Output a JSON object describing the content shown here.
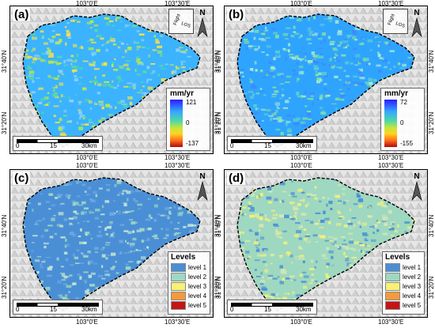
{
  "coords": {
    "lon1": "103°0'E",
    "lon2": "103°30'E",
    "lat1": "31°40'N",
    "lat2": "31°20'N"
  },
  "north_label": "N",
  "scale": {
    "t0": "0",
    "t1": "15",
    "t2": "30km"
  },
  "los_labels": {
    "flight": "Flight",
    "los": "LOS"
  },
  "panels": {
    "a": {
      "label": "(a)",
      "unit": "mm/yr",
      "max": "121",
      "mid": "0",
      "min": "-137"
    },
    "b": {
      "label": "(b)",
      "unit": "mm/yr",
      "max": "72",
      "mid": "0",
      "min": "-155"
    },
    "c": {
      "label": "(c)"
    },
    "d": {
      "label": "(d)"
    }
  },
  "legend": {
    "title": "Levels",
    "items": [
      {
        "label": "level 1",
        "color": "#4a8fd6"
      },
      {
        "label": "level 2",
        "color": "#9ed8c0"
      },
      {
        "label": "level 3",
        "color": "#f7f176"
      },
      {
        "label": "level 4",
        "color": "#f59a3c"
      },
      {
        "label": "level 5",
        "color": "#c41414"
      }
    ]
  },
  "colors": {
    "velocity_a": [
      "#3bb3ff",
      "#56d8a3",
      "#b9e84a",
      "#f5e04a",
      "#8fd1ff"
    ],
    "velocity_b": [
      "#2fa4ff",
      "#5fd0c8",
      "#7fe0a0",
      "#3f88ff",
      "#a8e8d0"
    ],
    "levels_c": [
      "#4a8fd6",
      "#9ed8c0",
      "#6ea8dd",
      "#c9e7d3"
    ],
    "levels_d": [
      "#9ed8c0",
      "#f7f176",
      "#4a8fd6",
      "#d9e8b0"
    ]
  }
}
